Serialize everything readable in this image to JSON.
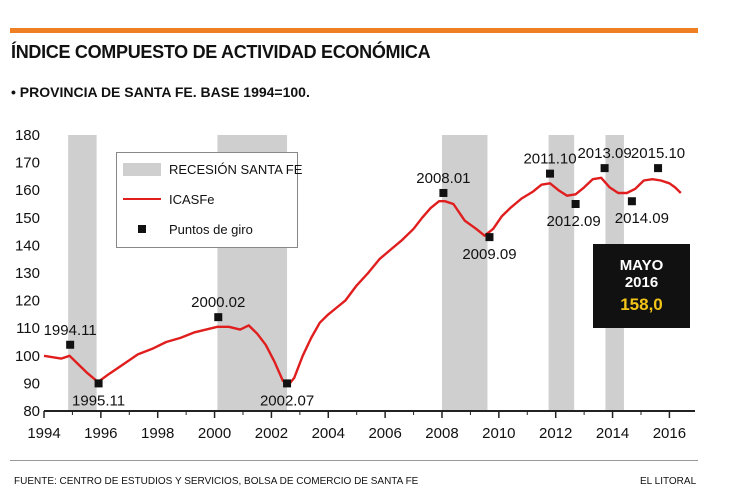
{
  "header": {
    "title": "ÍNDICE COMPUESTO DE ACTIVIDAD ECONÓMICA",
    "subtitle": "• PROVINCIA DE SANTA FE. BASE 1994=100."
  },
  "legend": {
    "recession": "RECESIÓN SANTA FE",
    "series": "ICASFe",
    "points": "Puntos de giro"
  },
  "callout": {
    "line1": "MAYO",
    "line2": "2016",
    "value": "158,0"
  },
  "footer": {
    "source": "FUENTE: CENTRO DE ESTUDIOS Y SERVICIOS, BOLSA DE COMERCIO DE SANTA FE",
    "credit": "EL LITORAL"
  },
  "colors": {
    "accent": "#f07e22",
    "line": "#e01e1e",
    "recession": "#cfcfcf",
    "callout_bg": "#111111",
    "callout_value": "#f2c319"
  },
  "chart_data": {
    "type": "line",
    "title": "ÍNDICE COMPUESTO DE ACTIVIDAD ECONÓMICA",
    "subtitle": "PROVINCIA DE SANTA FE. BASE 1994=100.",
    "xlabel": "",
    "ylabel": "",
    "xlim": [
      1994,
      2016.9
    ],
    "ylim": [
      80,
      180
    ],
    "x_ticks": [
      1994,
      1996,
      1998,
      2000,
      2002,
      2004,
      2006,
      2008,
      2010,
      2012,
      2014,
      2016
    ],
    "y_ticks": [
      80,
      90,
      100,
      110,
      120,
      130,
      140,
      150,
      160,
      170,
      180
    ],
    "grid": false,
    "legend_position": "top-left",
    "recessions": [
      [
        1994.85,
        1995.85
      ],
      [
        2000.1,
        2002.55
      ],
      [
        2008.0,
        2009.6
      ],
      [
        2011.75,
        2012.65
      ],
      [
        2013.75,
        2014.4
      ]
    ],
    "series": [
      {
        "name": "ICASFe",
        "x": [
          1994.0,
          1994.3,
          1994.6,
          1994.9,
          1995.2,
          1995.5,
          1995.9,
          1996.3,
          1996.8,
          1997.3,
          1997.8,
          1998.3,
          1998.8,
          1999.3,
          1999.7,
          2000.1,
          2000.5,
          2000.9,
          2001.2,
          2001.5,
          2001.8,
          2002.1,
          2002.4,
          2002.6,
          2002.8,
          2003.1,
          2003.4,
          2003.7,
          2004.0,
          2004.3,
          2004.6,
          2005.0,
          2005.4,
          2005.8,
          2006.2,
          2006.6,
          2007.0,
          2007.3,
          2007.6,
          2007.9,
          2008.1,
          2008.4,
          2008.8,
          2009.2,
          2009.5,
          2009.8,
          2010.1,
          2010.4,
          2010.8,
          2011.2,
          2011.5,
          2011.8,
          2012.1,
          2012.4,
          2012.7,
          2013.0,
          2013.3,
          2013.6,
          2013.9,
          2014.2,
          2014.5,
          2014.8,
          2015.1,
          2015.4,
          2015.7,
          2016.0,
          2016.2,
          2016.4
        ],
        "y": [
          100,
          99.5,
          99,
          100,
          97,
          94,
          90.5,
          93.5,
          97,
          100.5,
          102.5,
          105,
          106.5,
          108.5,
          109.5,
          110.5,
          110.5,
          109.5,
          111,
          108,
          104,
          98,
          91,
          89.5,
          92,
          100,
          106.5,
          112,
          115,
          117.5,
          120,
          125.5,
          130,
          135,
          138.5,
          142,
          146,
          150,
          153.5,
          156,
          156,
          155,
          149,
          146,
          143.5,
          146,
          150.5,
          153.5,
          157,
          159.5,
          162,
          162.5,
          160,
          158,
          158.5,
          161,
          164,
          164.5,
          161,
          159,
          159,
          160.5,
          163.5,
          164,
          163.5,
          162.5,
          161,
          159
        ]
      }
    ],
    "turning_points": [
      {
        "label": "1994.11",
        "x": 1994.92,
        "y": 104
      },
      {
        "label": "1995.11",
        "x": 1995.92,
        "y": 90
      },
      {
        "label": "2000.02",
        "x": 2000.13,
        "y": 114
      },
      {
        "label": "2002.07",
        "x": 2002.55,
        "y": 90
      },
      {
        "label": "2008.01",
        "x": 2008.05,
        "y": 159
      },
      {
        "label": "2009.09",
        "x": 2009.67,
        "y": 143
      },
      {
        "label": "2011.10",
        "x": 2011.8,
        "y": 166
      },
      {
        "label": "2012.09",
        "x": 2012.7,
        "y": 155
      },
      {
        "label": "2013.09",
        "x": 2013.72,
        "y": 168
      },
      {
        "label": "2014.09",
        "x": 2014.68,
        "y": 156
      },
      {
        "label": "2015.10",
        "x": 2015.6,
        "y": 168
      }
    ]
  }
}
